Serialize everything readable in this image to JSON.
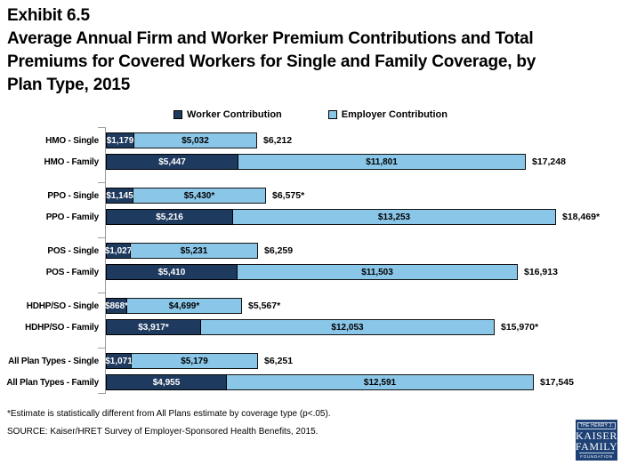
{
  "title": {
    "exhibit": "Exhibit 6.5",
    "lines": [
      "Average Annual Firm and Worker Premium Contributions and Total",
      "Premiums for Covered Workers for Single and Family Coverage, by",
      "Plan Type, 2015"
    ]
  },
  "legend": [
    {
      "label": "Worker Contribution",
      "color": "#1F3A5F"
    },
    {
      "label": "Employer Contribution",
      "color": "#8AC6E8"
    }
  ],
  "chart_data": {
    "type": "bar",
    "orientation": "horizontal",
    "stacked": true,
    "value_unit": "USD",
    "series_names": [
      "Worker Contribution",
      "Employer Contribution"
    ],
    "value_axis_visible": false,
    "max_total": 18469,
    "groups": [
      {
        "plan": "HMO",
        "rows": [
          {
            "label": "HMO - Single",
            "worker": 1179,
            "employer": 5032,
            "total": 6212,
            "worker_label": "$1,179",
            "employer_label": "$5,032",
            "total_label": "$6,212"
          },
          {
            "label": "HMO - Family",
            "worker": 5447,
            "employer": 11801,
            "total": 17248,
            "worker_label": "$5,447",
            "employer_label": "$11,801",
            "total_label": "$17,248"
          }
        ]
      },
      {
        "plan": "PPO",
        "rows": [
          {
            "label": "PPO - Single",
            "worker": 1145,
            "employer": 5430,
            "total": 6575,
            "worker_label": "$1,145",
            "employer_label": "$5,430*",
            "total_label": "$6,575*"
          },
          {
            "label": "PPO - Family",
            "worker": 5216,
            "employer": 13253,
            "total": 18469,
            "worker_label": "$5,216",
            "employer_label": "$13,253",
            "total_label": "$18,469*"
          }
        ]
      },
      {
        "plan": "POS",
        "rows": [
          {
            "label": "POS - Single",
            "worker": 1027,
            "employer": 5231,
            "total": 6259,
            "worker_label": "$1,027",
            "employer_label": "$5,231",
            "total_label": "$6,259"
          },
          {
            "label": "POS - Family",
            "worker": 5410,
            "employer": 11503,
            "total": 16913,
            "worker_label": "$5,410",
            "employer_label": "$11,503",
            "total_label": "$16,913"
          }
        ]
      },
      {
        "plan": "HDHP/SO",
        "rows": [
          {
            "label": "HDHP/SO - Single",
            "worker": 868,
            "employer": 4699,
            "total": 5567,
            "worker_label": "$868*",
            "employer_label": "$4,699*",
            "total_label": "$5,567*"
          },
          {
            "label": "HDHP/SO - Family",
            "worker": 3917,
            "employer": 12053,
            "total": 15970,
            "worker_label": "$3,917*",
            "employer_label": "$12,053",
            "total_label": "$15,970*"
          }
        ]
      },
      {
        "plan": "All Plan Types",
        "rows": [
          {
            "label": "All Plan Types - Single",
            "worker": 1071,
            "employer": 5179,
            "total": 6251,
            "worker_label": "$1,071",
            "employer_label": "$5,179",
            "total_label": "$6,251"
          },
          {
            "label": "All Plan Types - Family",
            "worker": 4955,
            "employer": 12591,
            "total": 17545,
            "worker_label": "$4,955",
            "employer_label": "$12,591",
            "total_label": "$17,545"
          }
        ]
      }
    ]
  },
  "footnotes": [
    "*Estimate is statistically different from All Plans estimate by coverage type (p<.05).",
    "SOURCE:  Kaiser/HRET Survey of Employer-Sponsored Health Benefits, 2015."
  ],
  "logo": {
    "top": "THE HENRY J.",
    "name1": "KAISER",
    "name2": "FAMILY",
    "bottom": "FOUNDATION",
    "background": "#1E4175"
  }
}
